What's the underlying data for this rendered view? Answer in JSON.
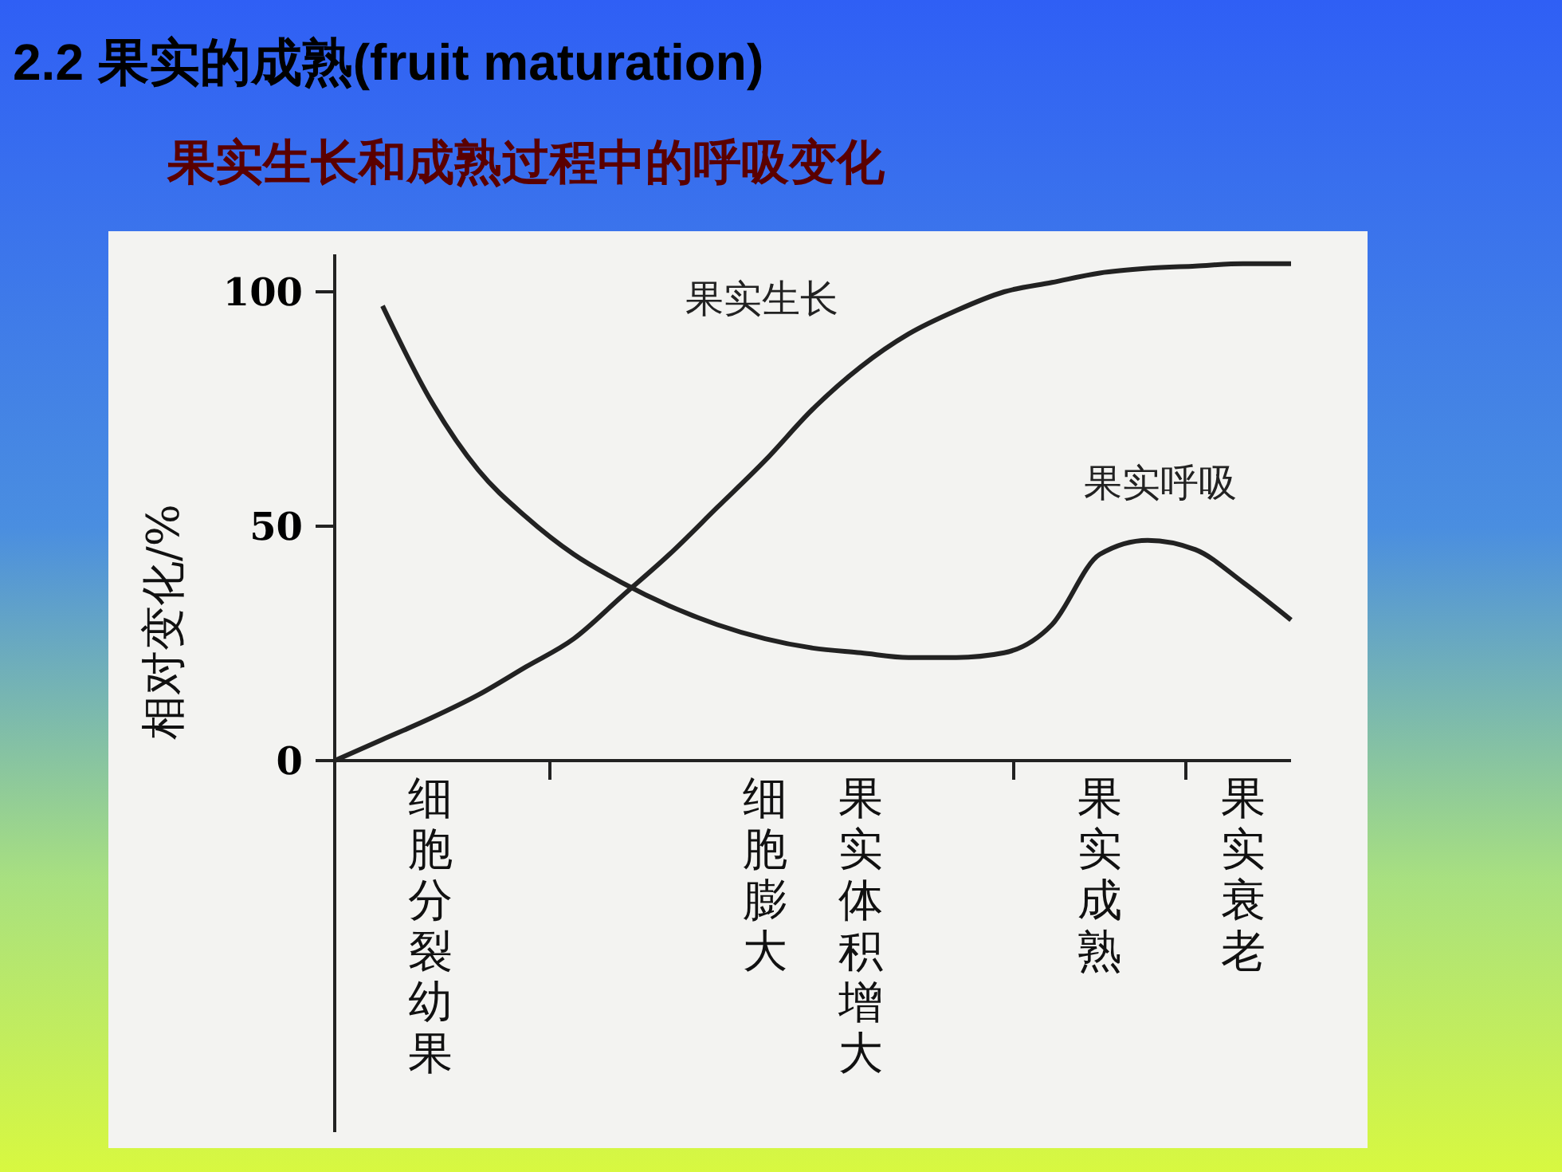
{
  "chart_data": {
    "type": "line",
    "title": "2.2 果实的成熟(fruit maturation)",
    "subtitle": "果实生长和成熟过程中的呼吸变化",
    "ylabel": "相对变化/%",
    "categories": [
      null,
      null,
      "细胞分裂幼果",
      null,
      null,
      null,
      null,
      null,
      null,
      "细胞膨大",
      null,
      "果实体积增大",
      null,
      null,
      null,
      null,
      "果实成熟",
      null,
      null,
      "果实衰老",
      null
    ],
    "ylim": [
      0,
      108
    ],
    "yticks": [
      0,
      50,
      100
    ],
    "grid": false,
    "legend": false,
    "marker": "none",
    "line_style": "solid",
    "series": [
      {
        "name": "果实生长",
        "color": "#222222",
        "values": [
          0,
          4.5,
          9,
          14,
          20,
          26,
          35,
          44,
          54,
          64,
          75,
          84,
          91,
          96,
          100,
          102,
          104,
          105,
          105.5,
          106,
          106
        ]
      },
      {
        "name": "果实呼吸",
        "color": "#222222",
        "values": [
          null,
          97,
          77,
          62,
          52,
          44,
          38,
          33,
          29,
          26,
          24,
          23,
          22,
          22,
          23,
          29,
          44,
          47,
          45,
          38,
          30
        ]
      }
    ]
  }
}
